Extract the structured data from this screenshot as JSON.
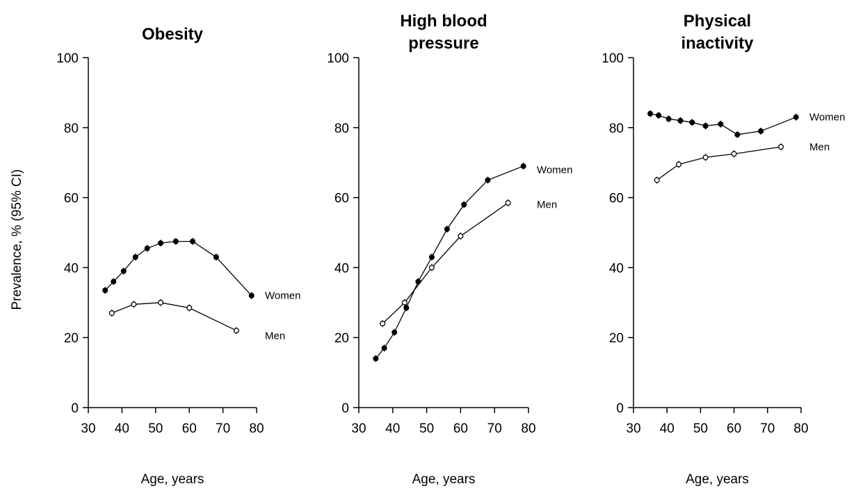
{
  "figure": {
    "ylabel": "Prevalence, % (95% CI)"
  },
  "chart_data": [
    {
      "type": "line",
      "title": [
        "Obesity"
      ],
      "xlabel": "Age, years",
      "xlim": [
        30,
        80
      ],
      "ylim": [
        0,
        100
      ],
      "xticks": [
        30,
        40,
        50,
        60,
        70,
        80
      ],
      "yticks": [
        0,
        20,
        40,
        60,
        80,
        100
      ],
      "series": [
        {
          "name": "Women",
          "marker": "filled-circle",
          "x": [
            35,
            37.5,
            40.5,
            44,
            47.5,
            51.5,
            56,
            61,
            68,
            78.5
          ],
          "y": [
            33.5,
            36,
            39,
            43,
            45.5,
            47,
            47.5,
            47.5,
            43,
            32
          ]
        },
        {
          "name": "Men",
          "marker": "open-circle",
          "x": [
            37,
            43.5,
            51.5,
            60,
            74
          ],
          "y": [
            27,
            29.5,
            30,
            28.5,
            22
          ]
        }
      ]
    },
    {
      "type": "line",
      "title": [
        "High blood",
        "pressure"
      ],
      "xlabel": "Age, years",
      "xlim": [
        30,
        80
      ],
      "ylim": [
        0,
        100
      ],
      "xticks": [
        30,
        40,
        50,
        60,
        70,
        80
      ],
      "yticks": [
        0,
        20,
        40,
        60,
        80,
        100
      ],
      "series": [
        {
          "name": "Women",
          "marker": "filled-circle",
          "x": [
            35,
            37.5,
            40.5,
            44,
            47.5,
            51.5,
            56,
            61,
            68,
            78.5
          ],
          "y": [
            14,
            17,
            21.5,
            28.5,
            36,
            43,
            51,
            58,
            65,
            69
          ]
        },
        {
          "name": "Men",
          "marker": "open-circle",
          "x": [
            37,
            43.5,
            51.5,
            60,
            74
          ],
          "y": [
            24,
            30,
            40,
            49,
            58.5
          ]
        }
      ]
    },
    {
      "type": "line",
      "title": [
        "Physical",
        "inactivity"
      ],
      "xlabel": "Age, years",
      "xlim": [
        30,
        80
      ],
      "ylim": [
        0,
        100
      ],
      "xticks": [
        30,
        40,
        50,
        60,
        70,
        80
      ],
      "yticks": [
        0,
        20,
        40,
        60,
        80,
        100
      ],
      "series": [
        {
          "name": "Women",
          "marker": "filled-circle",
          "x": [
            35,
            37.5,
            40.5,
            44,
            47.5,
            51.5,
            56,
            61,
            68,
            78.5
          ],
          "y": [
            84,
            83.5,
            82.5,
            82,
            81.5,
            80.5,
            81,
            78,
            79,
            83
          ]
        },
        {
          "name": "Men",
          "marker": "open-circle",
          "x": [
            37,
            43.5,
            51.5,
            60,
            74
          ],
          "y": [
            65,
            69.5,
            71.5,
            72.5,
            74.5
          ]
        }
      ]
    }
  ]
}
